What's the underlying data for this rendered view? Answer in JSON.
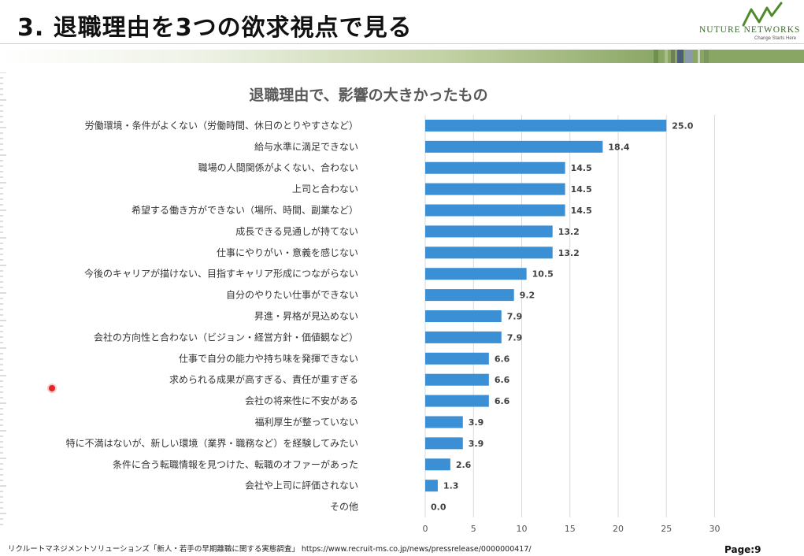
{
  "slide": {
    "title": "3. 退職理由を3つの欲求視点で見る",
    "page_label": "Page:9",
    "source": "リクルートマネジメントソリューションズ「新人・若手の早期離職に関する実態調査」 https://www.recruit-ms.co.jp/news/pressrelease/0000000417/"
  },
  "logo": {
    "name": "NUTURE NETWORKS",
    "tagline": "Change Starts Here"
  },
  "colors": {
    "bar": "#3b8fd4",
    "grid": "#d9d9d9",
    "band": "#8aa665",
    "logo": "#3a6b2a",
    "cursor": "#e32424"
  },
  "chart_data": {
    "type": "bar",
    "orientation": "horizontal",
    "title": "退職理由で、影響の大きかったもの",
    "categories": [
      "労働環境・条件がよくない（労働時間、休日のとりやすさなど）",
      "給与水準に満足できない",
      "職場の人間関係がよくない、合わない",
      "上司と合わない",
      "希望する働き方ができない（場所、時間、副業など）",
      "成長できる見通しが持てない",
      "仕事にやりがい・意義を感じない",
      "今後のキャリアが描けない、目指すキャリア形成につながらない",
      "自分のやりたい仕事ができない",
      "昇進・昇格が見込めない",
      "会社の方向性と合わない（ビジョン・経営方針・価値観など）",
      "仕事で自分の能力や持ち味を発揮できない",
      "求められる成果が高すぎる、責任が重すぎる",
      "会社の将来性に不安がある",
      "福利厚生が整っていない",
      "特に不満はないが、新しい環境（業界・職務など）を経験してみたい",
      "条件に合う転職情報を見つけた、転職のオファーがあった",
      "会社や上司に評価されない",
      "その他"
    ],
    "values": [
      25.0,
      18.4,
      14.5,
      14.5,
      14.5,
      13.2,
      13.2,
      10.5,
      9.2,
      7.9,
      7.9,
      6.6,
      6.6,
      6.6,
      3.9,
      3.9,
      2.6,
      1.3,
      0.0
    ],
    "value_labels": [
      "25.0",
      "18.4",
      "14.5",
      "14.5",
      "14.5",
      "13.2",
      "13.2",
      "10.5",
      "9.2",
      "7.9",
      "7.9",
      "6.6",
      "6.6",
      "6.6",
      "3.9",
      "3.9",
      "2.6",
      "1.3",
      "0.0"
    ],
    "xlim": [
      0,
      30
    ],
    "xticks": [
      0,
      5,
      10,
      15,
      20,
      25,
      30
    ],
    "xtick_labels": [
      "0",
      "5",
      "10",
      "15",
      "20",
      "25",
      "30"
    ],
    "grid": true,
    "xlabel": "",
    "ylabel": ""
  }
}
